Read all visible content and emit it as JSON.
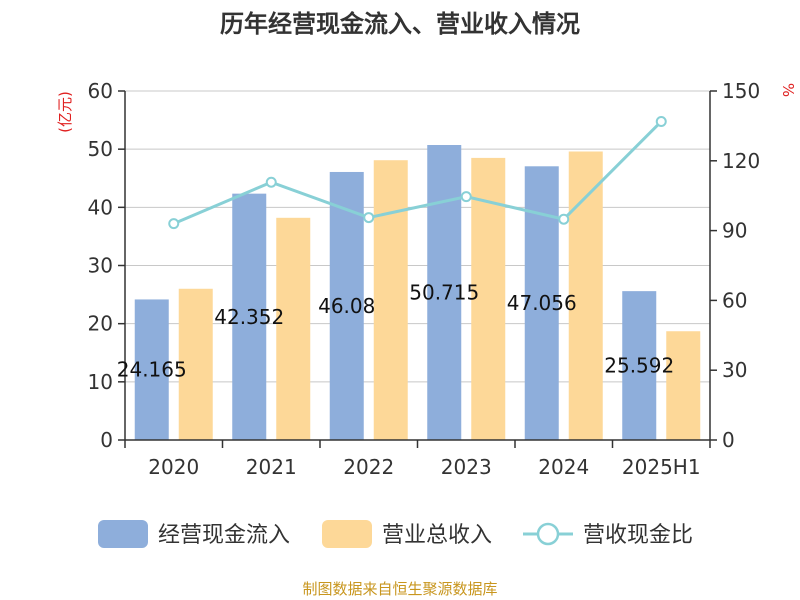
{
  "chart_data": {
    "type": "bar",
    "title": "历年经营现金流入、营业收入情况",
    "categories": [
      "2020",
      "2021",
      "2022",
      "2023",
      "2024",
      "2025H1"
    ],
    "series": [
      {
        "name": "经营现金流入",
        "axis": "left",
        "color": "#8eaedb",
        "values": [
          24.165,
          42.352,
          46.08,
          50.715,
          47.056,
          25.592
        ],
        "labels": [
          "24.165",
          "42.352",
          "46.08",
          "50.715",
          "47.056",
          "25.592"
        ]
      },
      {
        "name": "营业总收入",
        "axis": "left",
        "color": "#fdd898",
        "values": [
          26.0,
          38.2,
          48.1,
          48.5,
          49.6,
          18.7
        ]
      },
      {
        "name": "营收现金比",
        "axis": "right",
        "type": "line",
        "color": "#88d0d6",
        "values": [
          93,
          110.8,
          95.6,
          104.6,
          94.9,
          136.9
        ]
      }
    ],
    "y_left": {
      "unit": "(亿元)",
      "min": 0,
      "max": 60,
      "ticks": [
        "0",
        "10",
        "20",
        "30",
        "40",
        "50",
        "60"
      ]
    },
    "y_right": {
      "unit": "%",
      "min": 0,
      "max": 150,
      "ticks": [
        "0",
        "30",
        "60",
        "90",
        "120",
        "150"
      ]
    },
    "grid": true,
    "legend_position": "bottom"
  },
  "source": "制图数据来自恒生聚源数据库"
}
